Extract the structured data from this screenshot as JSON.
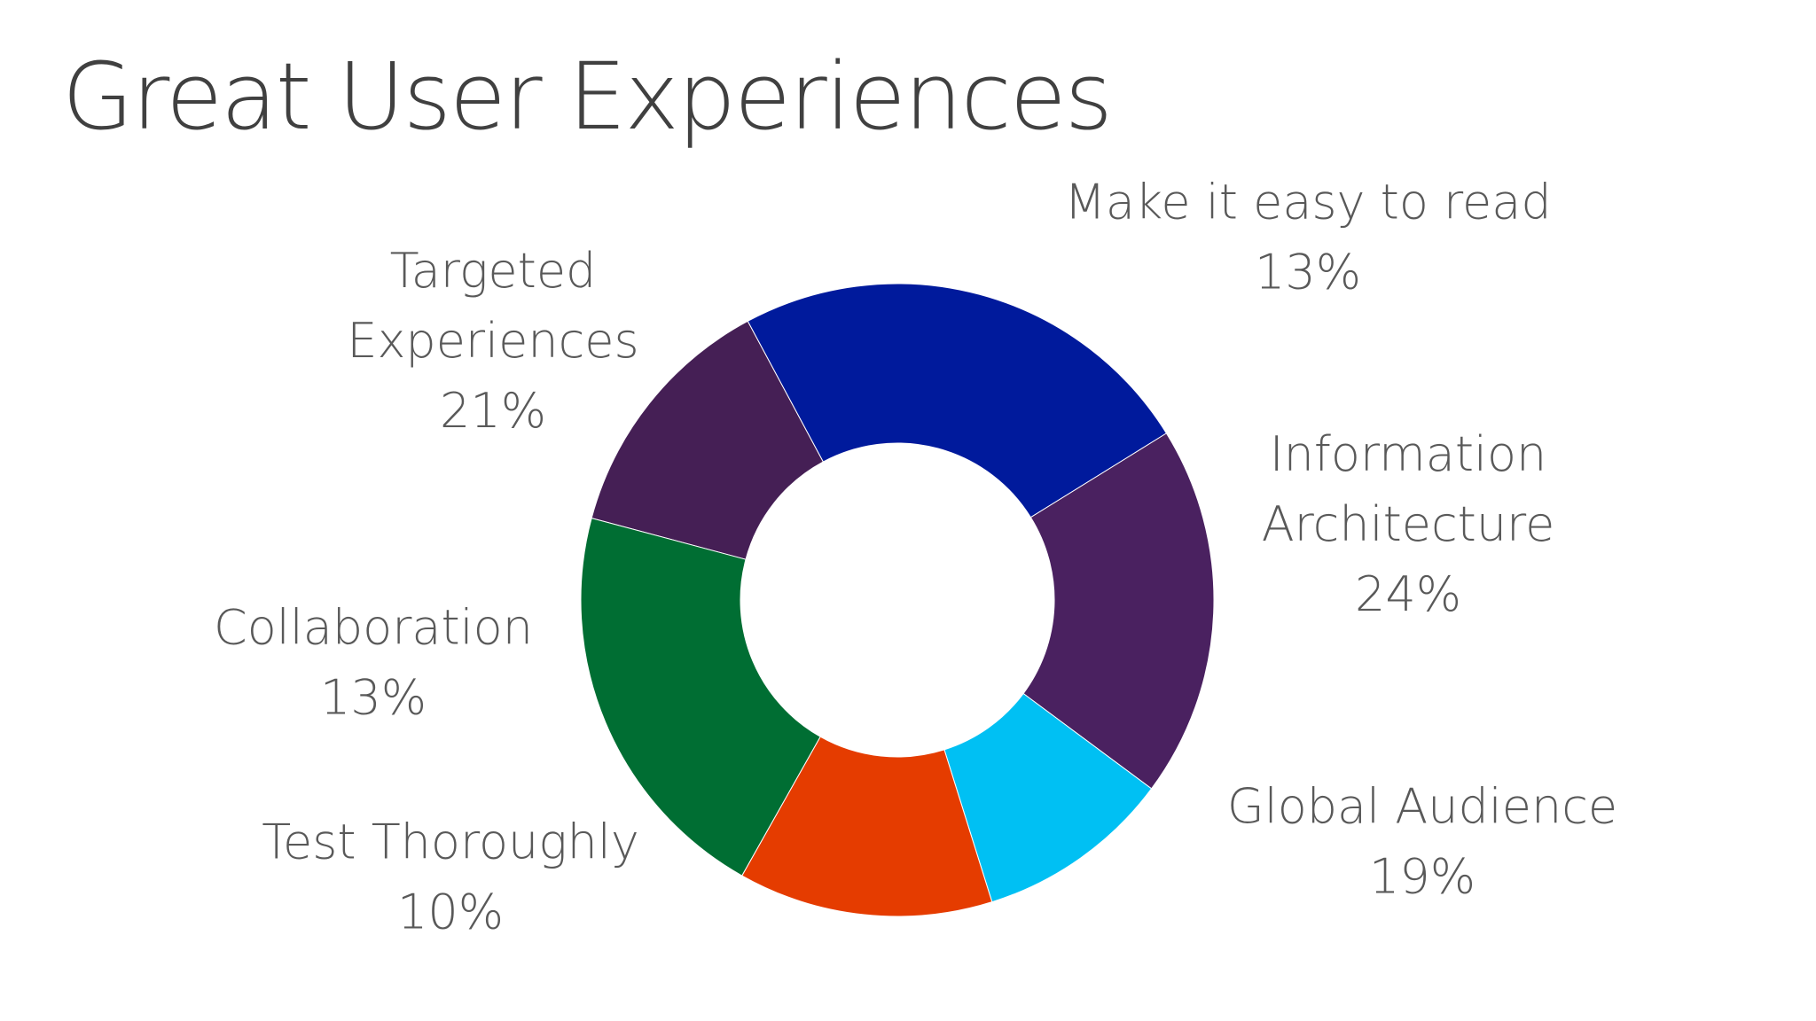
{
  "title": "Great User Experiences",
  "chart_data": {
    "type": "pie",
    "variant": "donut",
    "title": "",
    "legend": "none",
    "categories": [
      "Make it easy to read",
      "Information Architecture",
      "Global Audience",
      "Test Thoroughly",
      "Collaboration",
      "Targeted Experiences"
    ],
    "values": [
      13,
      24,
      19,
      10,
      13,
      21
    ],
    "value_labels": [
      "13%",
      "24%",
      "19%",
      "10%",
      "13%",
      "21%"
    ],
    "label_lines": [
      [
        "Make it easy to read"
      ],
      [
        "Information",
        "Architecture"
      ],
      [
        "Global Audience"
      ],
      [
        "Test Thoroughly"
      ],
      [
        "Collaboration"
      ],
      [
        "Targeted",
        "Experiences"
      ]
    ],
    "colors": [
      "#451f55",
      "#001a9c",
      "#4a2160",
      "#00c0f3",
      "#e53c00",
      "#006e33"
    ]
  }
}
